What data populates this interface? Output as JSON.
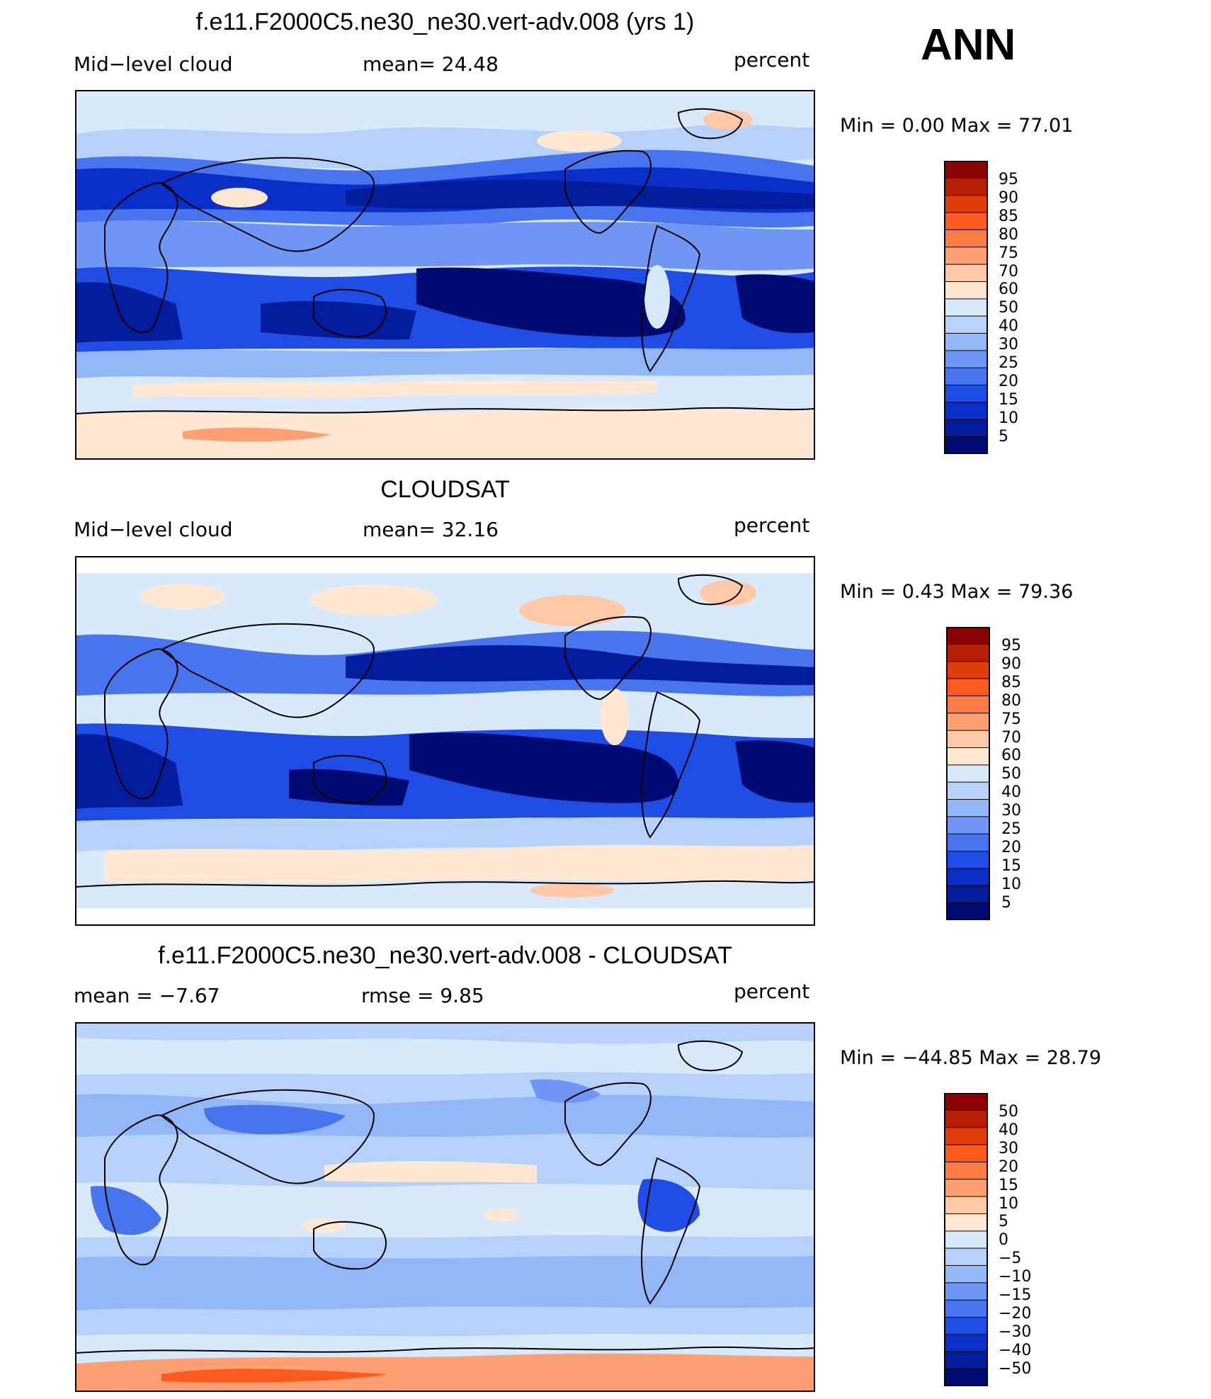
{
  "season": "ANN",
  "panels": [
    {
      "title": "f.e11.F2000C5.ne30_ne30.vert-adv.008 (yrs 1)",
      "left_label": "Mid−level cloud",
      "center_label": "mean=   24.48",
      "units": "percent",
      "minmax": "Min =    0.00  Max =    77.01",
      "colorbar_labels": [
        "95",
        "90",
        "85",
        "80",
        "75",
        "70",
        "60",
        "50",
        "40",
        "30",
        "25",
        "20",
        "15",
        "10",
        "5"
      ]
    },
    {
      "title": "CLOUDSAT",
      "left_label": "Mid−level cloud",
      "center_label": "mean=   32.16",
      "units": "percent",
      "minmax": "Min =    0.43  Max =    79.36",
      "colorbar_labels": [
        "95",
        "90",
        "85",
        "80",
        "75",
        "70",
        "60",
        "50",
        "40",
        "30",
        "25",
        "20",
        "15",
        "10",
        "5"
      ]
    },
    {
      "title": "f.e11.F2000C5.ne30_ne30.vert-adv.008 - CLOUDSAT",
      "left_label": "mean =   −7.67",
      "center_label": "rmse =    9.85",
      "units": "percent",
      "minmax": "Min = −44.85  Max =    28.79",
      "colorbar_labels": [
        "50",
        "40",
        "30",
        "20",
        "15",
        "10",
        "5",
        "0",
        "−5",
        "−10",
        "−15",
        "−20",
        "−30",
        "−40",
        "−50"
      ]
    }
  ],
  "colors": {
    "scale": [
      "#8b0000",
      "#b81d05",
      "#e13d0c",
      "#ff5a1e",
      "#ff7c45",
      "#ffa072",
      "#ffc9a8",
      "#ffe7d3",
      "#d7e9fb",
      "#b7d2fa",
      "#93b6f9",
      "#6f96f5",
      "#4874ef",
      "#1f4ce4",
      "#0a2fc8",
      "#021c9c",
      "#000a73"
    ]
  }
}
